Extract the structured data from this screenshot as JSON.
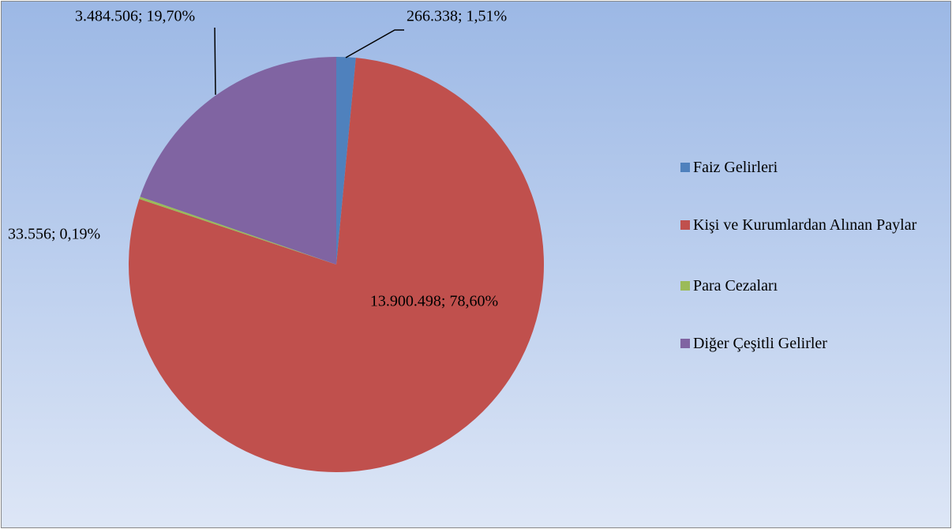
{
  "chart_data": {
    "type": "pie",
    "categories": [
      "Faiz Gelirleri",
      "Kişi ve Kurumlardan Alınan Paylar",
      "Para Cezaları",
      "Diğer Çeşitli Gelirler"
    ],
    "values": [
      266338,
      13900498,
      33556,
      3484506
    ],
    "value_labels": [
      "266.338; 1,51%",
      "13.900.498; 78,60%",
      "33.556; 0,19%",
      "3.484.506; 19,70%"
    ],
    "colors": [
      "#4f81bd",
      "#c0504d",
      "#9bbb59",
      "#8064a2"
    ],
    "legend": "right"
  }
}
